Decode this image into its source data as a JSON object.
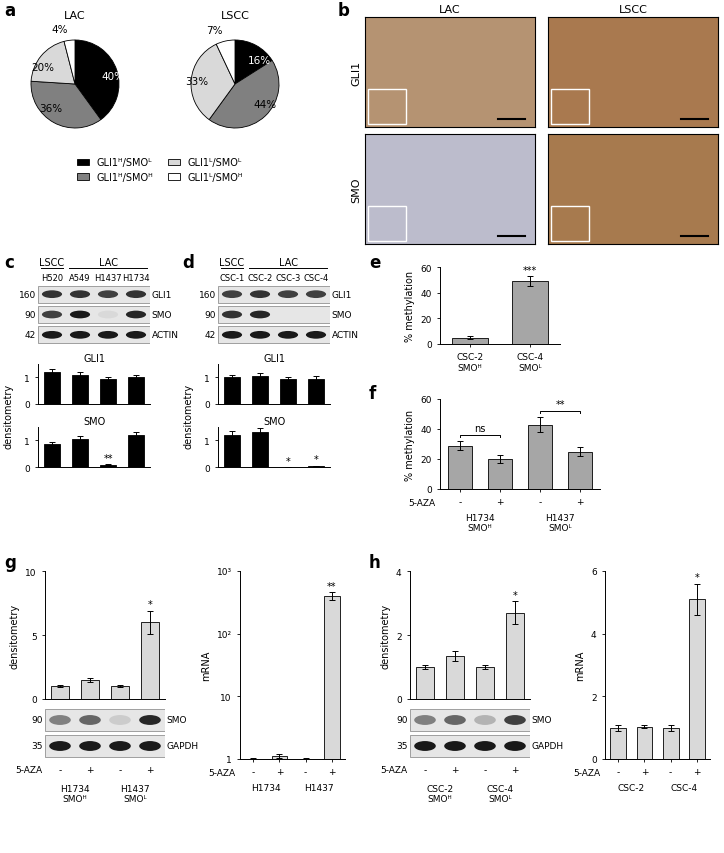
{
  "panels": [
    "a",
    "b",
    "c",
    "d",
    "e",
    "f",
    "g",
    "h"
  ],
  "chart_data": [
    {
      "panel": "a",
      "type": "pie",
      "title": "LAC",
      "categories": [
        "GLI1ᴴ/SMOᴸ",
        "GLI1ᴴ/SMOᴴ",
        "GLI1ᴸ/SMOᴸ",
        "GLI1ᴸ/SMOᴴ"
      ],
      "values": [
        40,
        36,
        20,
        4
      ],
      "value_labels": [
        "40%",
        "36%",
        "20%",
        "4%"
      ],
      "colors": [
        "#000000",
        "#808080",
        "#d9d9d9",
        "#ffffff"
      ],
      "legend": "lower center"
    },
    {
      "panel": "a",
      "type": "pie",
      "title": "LSCC",
      "values": [
        16,
        44,
        33,
        7
      ],
      "value_labels": [
        "16%",
        "44%",
        "33%",
        "7%"
      ],
      "colors": [
        "#000000",
        "#808080",
        "#d9d9d9",
        "#ffffff"
      ]
    },
    {
      "panel": "c",
      "type": "bar",
      "title": "GLI1",
      "y_label": "densitometry",
      "categories": [
        "H520",
        "A549",
        "H1437",
        "H1734"
      ],
      "values": [
        1.2,
        1.1,
        0.95,
        1.0
      ],
      "errors": [
        0.12,
        0.1,
        0.08,
        0.1
      ],
      "color": "#000000",
      "ylim": [
        0,
        1.5
      ],
      "yticks": [
        0,
        1
      ],
      "tick_labels": "y"
    },
    {
      "panel": "c",
      "type": "bar",
      "title": "SMO",
      "categories": [
        "H520",
        "A549",
        "H1437",
        "H1734"
      ],
      "values": [
        0.85,
        1.05,
        0.08,
        1.2
      ],
      "errors": [
        0.1,
        0.12,
        0.02,
        0.12
      ],
      "color": "#000000",
      "ylim": [
        0,
        1.5
      ],
      "yticks": [
        0,
        1
      ],
      "tick_labels": "y",
      "annotations": [
        {
          "index": 2,
          "text": "**"
        }
      ]
    },
    {
      "panel": "d",
      "type": "bar",
      "title": "GLI1",
      "y_label": "densitometry",
      "categories": [
        "CSC-1",
        "CSC-2",
        "CSC-3",
        "CSC-4"
      ],
      "values": [
        1.0,
        1.05,
        0.95,
        0.95
      ],
      "errors": [
        0.1,
        0.1,
        0.08,
        0.1
      ],
      "color": "#000000",
      "ylim": [
        0,
        1.5
      ],
      "yticks": [
        0,
        1
      ],
      "tick_labels": "y"
    },
    {
      "panel": "d",
      "type": "bar",
      "title": "SMO",
      "categories": [
        "CSC-1",
        "CSC-2",
        "CSC-3",
        "CSC-4"
      ],
      "values": [
        1.2,
        1.3,
        0,
        0.04
      ],
      "errors": [
        0.15,
        0.15,
        0,
        0.01
      ],
      "color": "#000000",
      "ylim": [
        0,
        1.5
      ],
      "yticks": [
        0,
        1
      ],
      "tick_labels": "y",
      "annotations": [
        {
          "index": 2,
          "text": "*"
        },
        {
          "index": 3,
          "text": "*"
        }
      ]
    },
    {
      "panel": "e",
      "type": "bar",
      "y_label": "% methylation",
      "categories": [
        "CSC-2\nSMOᴴ",
        "CSC-4\nSMOᴸ"
      ],
      "values": [
        5,
        49
      ],
      "errors": [
        1,
        4
      ],
      "color": "#a6a6a6",
      "ylim": [
        0,
        60
      ],
      "yticks": [
        0,
        20,
        40,
        60
      ],
      "annotations": [
        {
          "index": 1,
          "text": "***"
        }
      ]
    },
    {
      "panel": "f",
      "type": "bar",
      "y_label": "% methylation",
      "x_label": "5-AZA",
      "categories": [
        "-",
        "+",
        "-",
        "+"
      ],
      "group_labels": [
        "H1734\nSMOᴴ",
        "H1437\nSMOᴸ"
      ],
      "values": [
        29,
        20,
        43,
        25
      ],
      "errors": [
        3,
        2.5,
        5,
        3
      ],
      "color": "#a6a6a6",
      "ylim": [
        0,
        60
      ],
      "yticks": [
        0,
        20,
        40,
        60
      ],
      "annotations": [
        {
          "between": [
            0,
            1
          ],
          "text": "ns"
        },
        {
          "between": [
            2,
            3
          ],
          "text": "**"
        }
      ]
    },
    {
      "panel": "g",
      "type": "bar",
      "y_label": "densitometry",
      "categories": [
        "-",
        "+",
        "-",
        "+"
      ],
      "values": [
        1,
        1.5,
        1,
        6
      ],
      "errors": [
        0.1,
        0.15,
        0.1,
        0.9
      ],
      "color": "#d9d9d9",
      "ylim": [
        0,
        10
      ],
      "yticks": [
        0,
        5,
        10
      ],
      "tick_labels": "y",
      "annotations": [
        {
          "index": 3,
          "text": "*"
        }
      ]
    },
    {
      "panel": "g",
      "type": "bar",
      "y_label": "mRNA",
      "x_label": "5-AZA",
      "log": "y",
      "categories": [
        "-",
        "+",
        "-",
        "+"
      ],
      "group_labels": [
        "H1734",
        "H1437"
      ],
      "values": [
        1,
        1.1,
        1,
        400
      ],
      "errors": [
        0.03,
        0.08,
        0.03,
        60
      ],
      "color": "#d9d9d9",
      "ylim": [
        1,
        1000
      ],
      "yticks": [
        1,
        10,
        {
          "value": 100,
          "label": "10²"
        },
        {
          "value": 1000,
          "label": "10³"
        }
      ],
      "annotations": [
        {
          "index": 3,
          "text": "**"
        }
      ]
    },
    {
      "panel": "h",
      "type": "bar",
      "y_label": "densitometry",
      "categories": [
        "-",
        "+",
        "-",
        "+"
      ],
      "values": [
        1,
        1.35,
        1,
        2.7
      ],
      "errors": [
        0.05,
        0.15,
        0.05,
        0.35
      ],
      "color": "#d9d9d9",
      "ylim": [
        0,
        4
      ],
      "yticks": [
        0,
        2,
        4
      ],
      "tick_labels": "y",
      "annotations": [
        {
          "index": 3,
          "text": "*"
        }
      ]
    },
    {
      "panel": "h",
      "type": "bar",
      "y_label": "mRNA",
      "x_label": "5-AZA",
      "categories": [
        "-",
        "+",
        "-",
        "+"
      ],
      "group_labels": [
        "CSC-2",
        "CSC-4"
      ],
      "values": [
        1,
        1.03,
        1,
        5.1
      ],
      "errors": [
        0.1,
        0.05,
        0.1,
        0.5
      ],
      "color": "#d9d9d9",
      "ylim": [
        0,
        6
      ],
      "yticks": [
        0,
        2,
        4,
        6
      ],
      "annotations": [
        {
          "index": 3,
          "text": "*"
        }
      ]
    }
  ],
  "images": {
    "columns": [
      "LAC",
      "LSCC"
    ],
    "rows": [
      "GLI1",
      "SMO"
    ]
  },
  "blots": [
    {
      "lanes": [
        "H520",
        "A549",
        "H1437",
        "H1734"
      ],
      "groups": [
        {
          "label": "LSCC",
          "lanes": 1
        },
        {
          "label": "LAC",
          "lanes": 3
        }
      ],
      "rows": [
        {
          "name": "GLI1",
          "mw": 160,
          "bands": [
            0.8,
            0.8,
            0.75,
            0.8
          ]
        },
        {
          "name": "SMO",
          "mw": 90,
          "bands": [
            0.75,
            0.9,
            0.15,
            0.85
          ]
        },
        {
          "name": "ACTIN",
          "mw": 42,
          "bands": [
            0.9,
            0.9,
            0.9,
            0.9
          ]
        }
      ]
    },
    {
      "lanes": [
        "CSC-1",
        "CSC-2",
        "CSC-3",
        "CSC-4"
      ],
      "groups": [
        {
          "label": "LSCC",
          "lanes": 1
        },
        {
          "label": "LAC",
          "lanes": 3
        }
      ],
      "rows": [
        {
          "name": "GLI1",
          "mw": 160,
          "bands": [
            0.75,
            0.8,
            0.75,
            0.75
          ]
        },
        {
          "name": "SMO",
          "mw": 90,
          "bands": [
            0.8,
            0.85,
            0.1,
            0.1
          ]
        },
        {
          "name": "ACTIN",
          "mw": 42,
          "bands": [
            0.9,
            0.9,
            0.9,
            0.9
          ]
        }
      ]
    },
    {
      "lanes": [
        "-",
        "+",
        "-",
        "+"
      ],
      "lane_axis_label": "5-AZA",
      "groups": [
        {
          "label": "H1734\nSMOᴴ",
          "lanes": 2
        },
        {
          "label": "H1437\nSMOᴸ",
          "lanes": 2
        }
      ],
      "rows": [
        {
          "name": "SMO",
          "mw": 90,
          "bands": [
            0.5,
            0.6,
            0.2,
            0.85
          ]
        },
        {
          "name": "GAPDH",
          "mw": 35,
          "bands": [
            0.9,
            0.9,
            0.9,
            0.9
          ]
        }
      ]
    },
    {
      "lanes": [
        "-",
        "+",
        "-",
        "+"
      ],
      "lane_axis_label": "5-AZA",
      "groups": [
        {
          "label": "CSC-2\nSMOᴴ",
          "lanes": 2
        },
        {
          "label": "CSC-4\nSMOᴸ",
          "lanes": 2
        }
      ],
      "rows": [
        {
          "name": "SMO",
          "mw": 90,
          "bands": [
            0.5,
            0.6,
            0.3,
            0.75
          ]
        },
        {
          "name": "GAPDH",
          "mw": 35,
          "bands": [
            0.9,
            0.9,
            0.9,
            0.9
          ]
        }
      ]
    }
  ]
}
